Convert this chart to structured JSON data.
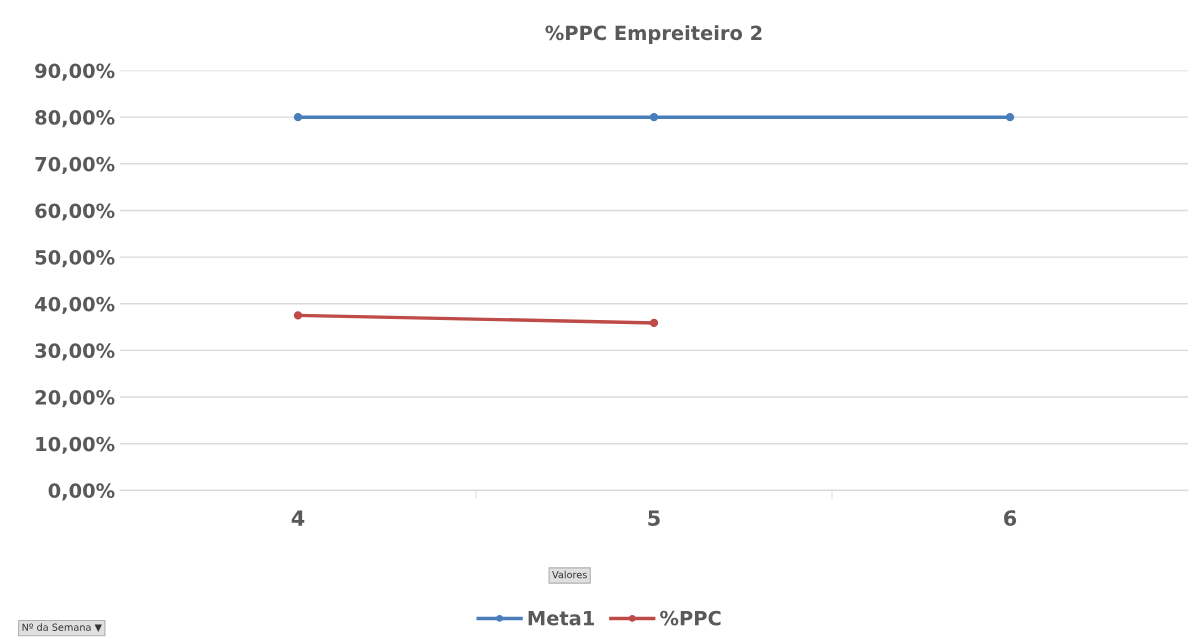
{
  "chart_data": {
    "type": "line",
    "title": "%PPC Empreiteiro 2",
    "categories": [
      "4",
      "5",
      "6"
    ],
    "series": [
      {
        "name": "Meta1",
        "color": "#4a7ebb",
        "values": [
          80,
          80,
          80
        ]
      },
      {
        "name": "%PPC",
        "color": "#be4b48",
        "values": [
          37.5,
          35.9,
          null
        ]
      }
    ],
    "ylim": [
      0,
      90
    ],
    "yticks": [
      {
        "value": 0,
        "label": "0,00%"
      },
      {
        "value": 10,
        "label": "10,00%"
      },
      {
        "value": 20,
        "label": "20,00%"
      },
      {
        "value": 30,
        "label": "30,00%"
      },
      {
        "value": 40,
        "label": "40,00%"
      },
      {
        "value": 50,
        "label": "50,00%"
      },
      {
        "value": 60,
        "label": "60,00%"
      },
      {
        "value": 70,
        "label": "70,00%"
      },
      {
        "value": 80,
        "label": "80,00%"
      },
      {
        "value": 90,
        "label": "90,00%"
      }
    ],
    "grid": "y",
    "legend": "bottom",
    "marker": "circle",
    "line_style": "solid",
    "annotations": [
      "Valores",
      "Nº da Semana ▼"
    ]
  }
}
